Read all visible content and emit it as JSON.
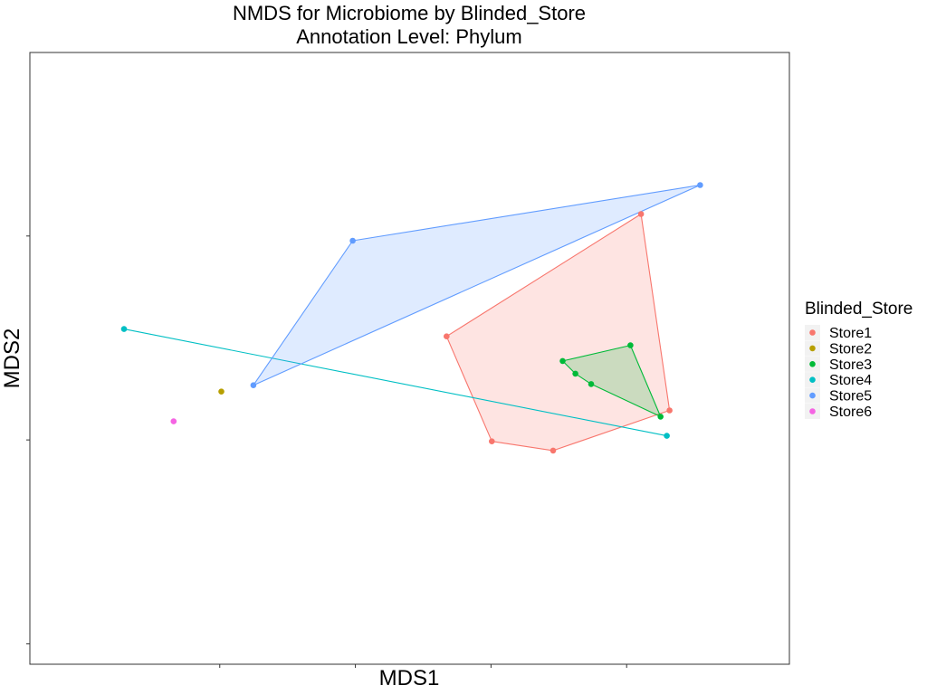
{
  "chart_data": {
    "type": "scatter",
    "title": "NMDS for Microbiome by Blinded_Store",
    "subtitle": "Annotation Level: Phylum",
    "xlabel": "MDS1",
    "ylabel": "MDS2",
    "xlim": [
      -0.07,
      0.21
    ],
    "ylim": [
      -0.16,
      0.14
    ],
    "x_ticks": [
      0,
      0.05,
      0.1,
      0.15
    ],
    "y_ticks": [
      -0.15,
      -0.05,
      0.05
    ],
    "grid": false,
    "legend": {
      "title": "Blinded_Store",
      "position": "right"
    },
    "series": [
      {
        "name": "Store1",
        "color": "#F8766D",
        "hull": true,
        "points": [
          [
            0.1553,
            0.0608
          ],
          [
            0.0836,
            0.0008
          ],
          [
            0.1658,
            -0.0355
          ],
          [
            0.1229,
            -0.0552
          ],
          [
            0.1003,
            -0.0507
          ]
        ]
      },
      {
        "name": "Store2",
        "color": "#B79F00",
        "hull": false,
        "points": [
          [
            0.0006,
            -0.0263
          ]
        ]
      },
      {
        "name": "Store3",
        "color": "#00BA38",
        "hull": true,
        "points": [
          [
            0.1311,
            -0.0175
          ],
          [
            0.1369,
            -0.0226
          ],
          [
            0.1264,
            -0.0113
          ],
          [
            0.1514,
            -0.0036
          ],
          [
            0.1625,
            -0.0386
          ]
        ]
      },
      {
        "name": "Store4",
        "color": "#00BFC4",
        "hull": true,
        "points": [
          [
            -0.0353,
            0.0044
          ],
          [
            0.1648,
            -0.048
          ]
        ]
      },
      {
        "name": "Store5",
        "color": "#619CFF",
        "hull": true,
        "points": [
          [
            0.0124,
            -0.0232
          ],
          [
            0.1771,
            0.075
          ],
          [
            0.049,
            0.0477
          ]
        ]
      },
      {
        "name": "Store6",
        "color": "#F564E3",
        "hull": false,
        "points": [
          [
            -0.017,
            -0.0409
          ]
        ]
      }
    ]
  }
}
